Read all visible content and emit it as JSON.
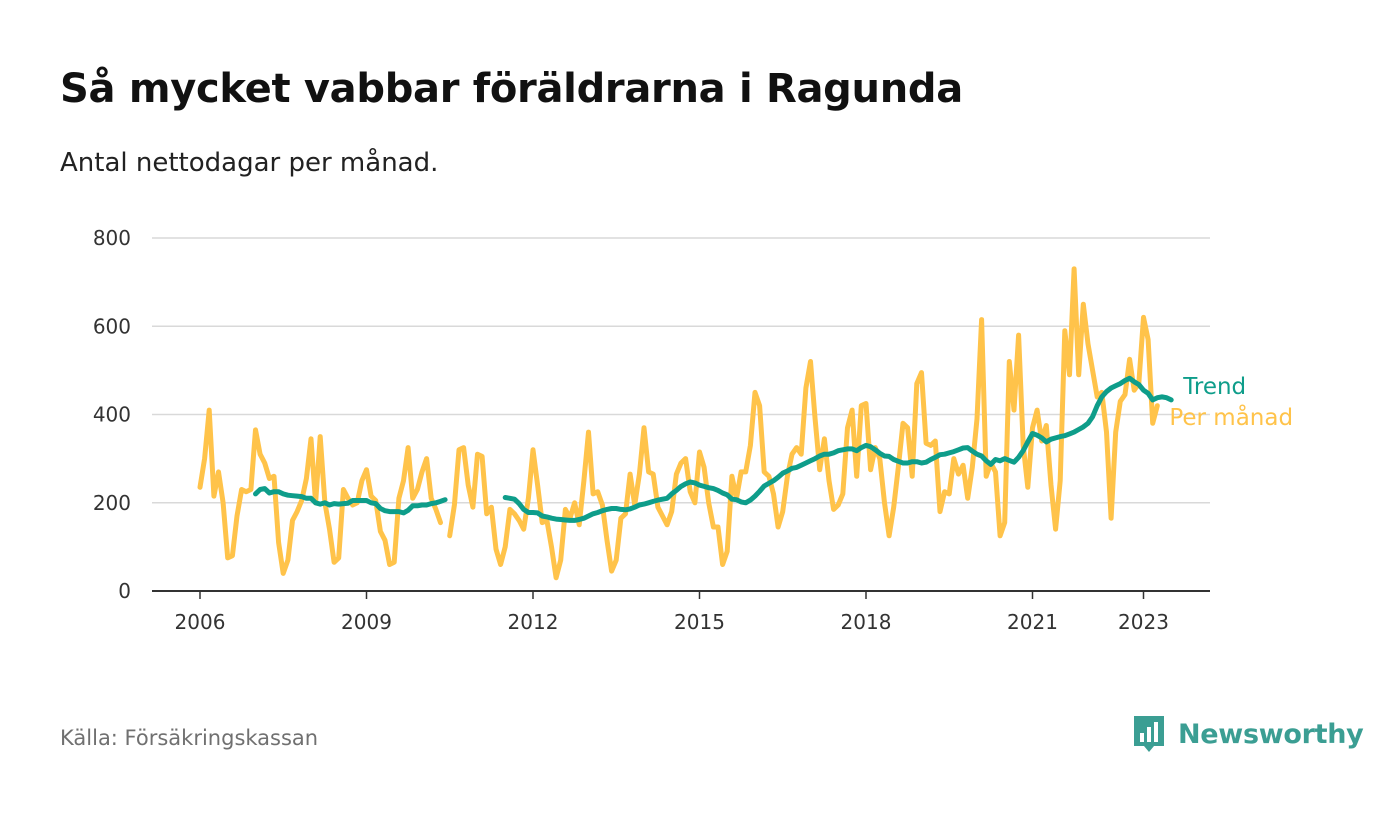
{
  "title": "Så mycket vabbar föräldrarna i Ragunda",
  "subtitle": "Antal nettodagar per månad.",
  "source": "Källa: Försäkringskassan",
  "brand": {
    "name": "Newsworthy",
    "icon": "newsworthy-logo-icon",
    "color": "#3b9e93"
  },
  "colors": {
    "monthly": "#ffc34a",
    "trend": "#0e9d8a",
    "grid": "#d9d9d9",
    "axis": "#333333"
  },
  "chart_data": {
    "type": "line",
    "title": "Så mycket vabbar föräldrarna i Ragunda",
    "ylabel": "",
    "xlabel": "",
    "ylim": [
      0,
      800
    ],
    "yticks": [
      0,
      200,
      400,
      600,
      800
    ],
    "ytick_labels": [
      "0",
      "200",
      "400",
      "600",
      "800"
    ],
    "xlim": [
      2005.75,
      2025.0
    ],
    "xticks": [
      2006,
      2009,
      2012,
      2015,
      2018,
      2021,
      2023
    ],
    "xtick_labels": [
      "2006",
      "2009",
      "2012",
      "2015",
      "2018",
      "2021",
      "2023"
    ],
    "legend_position": "inline at right end of lines",
    "series": [
      {
        "name": "Per månad",
        "label": "Per månad",
        "start": 2006.0,
        "step": 0.08333,
        "values": [
          235,
          300,
          410,
          215,
          270,
          200,
          75,
          80,
          170,
          230,
          225,
          230,
          365,
          310,
          290,
          255,
          260,
          110,
          40,
          70,
          160,
          180,
          205,
          255,
          345,
          200,
          350,
          200,
          140,
          65,
          75,
          230,
          210,
          195,
          200,
          250,
          275,
          215,
          205,
          135,
          115,
          60,
          65,
          210,
          250,
          325,
          210,
          230,
          270,
          300,
          210,
          185,
          155,
          null,
          125,
          195,
          320,
          325,
          240,
          190,
          310,
          305,
          175,
          190,
          95,
          60,
          100,
          185,
          175,
          160,
          140,
          210,
          320,
          240,
          155,
          160,
          100,
          30,
          70,
          185,
          165,
          200,
          150,
          250,
          360,
          220,
          225,
          195,
          115,
          45,
          70,
          165,
          175,
          265,
          195,
          265,
          370,
          270,
          265,
          190,
          170,
          150,
          180,
          265,
          290,
          300,
          225,
          200,
          315,
          280,
          200,
          145,
          145,
          60,
          90,
          260,
          210,
          270,
          270,
          330,
          450,
          420,
          270,
          260,
          220,
          145,
          180,
          260,
          310,
          325,
          310,
          460,
          520,
          390,
          275,
          345,
          250,
          185,
          195,
          220,
          370,
          410,
          260,
          420,
          425,
          275,
          325,
          300,
          200,
          125,
          190,
          280,
          380,
          370,
          260,
          470,
          495,
          335,
          330,
          340,
          180,
          225,
          220,
          300,
          265,
          285,
          210,
          280,
          390,
          615,
          260,
          290,
          270,
          125,
          155,
          520,
          410,
          580,
          330,
          235,
          370,
          410,
          340,
          375,
          240,
          140,
          250,
          590,
          490,
          730,
          490,
          650,
          560,
          500,
          440,
          450,
          360,
          165,
          360,
          430,
          445,
          525,
          455,
          470,
          620,
          570,
          380,
          420
        ],
        "color": "#ffc34a"
      },
      {
        "name": "Trend",
        "label": "Trend",
        "start": 2006.0,
        "step": 0.08333,
        "values": [
          null,
          null,
          null,
          null,
          null,
          null,
          null,
          null,
          null,
          null,
          null,
          null,
          220,
          230,
          232,
          222,
          225,
          225,
          220,
          217,
          216,
          215,
          214,
          210,
          210,
          200,
          197,
          200,
          195,
          198,
          197,
          198,
          199,
          205,
          205,
          205,
          205,
          200,
          198,
          187,
          182,
          180,
          180,
          180,
          177,
          183,
          193,
          193,
          195,
          195,
          198,
          200,
          203,
          207,
          null,
          null,
          null,
          null,
          null,
          null,
          null,
          null,
          null,
          null,
          null,
          null,
          212,
          210,
          208,
          198,
          185,
          178,
          178,
          177,
          170,
          168,
          165,
          163,
          162,
          161,
          160,
          160,
          162,
          165,
          170,
          175,
          178,
          182,
          185,
          187,
          187,
          185,
          184,
          186,
          190,
          195,
          197,
          200,
          203,
          206,
          208,
          210,
          220,
          228,
          237,
          243,
          247,
          245,
          240,
          237,
          234,
          232,
          228,
          222,
          218,
          208,
          207,
          202,
          200,
          206,
          215,
          226,
          238,
          244,
          250,
          258,
          267,
          272,
          278,
          280,
          285,
          290,
          295,
          300,
          306,
          310,
          310,
          313,
          318,
          320,
          322,
          322,
          318,
          325,
          330,
          327,
          320,
          312,
          306,
          305,
          298,
          294,
          290,
          290,
          293,
          293,
          290,
          292,
          298,
          303,
          309,
          310,
          313,
          316,
          320,
          324,
          325,
          317,
          310,
          306,
          295,
          287,
          298,
          295,
          300,
          296,
          292,
          303,
          318,
          338,
          357,
          353,
          347,
          338,
          344,
          347,
          350,
          352,
          356,
          360,
          366,
          372,
          380,
          395,
          420,
          440,
          452,
          460,
          465,
          470,
          477,
          482,
          474,
          468,
          455,
          448,
          433,
          438,
          440,
          438,
          433
        ],
        "color": "#0e9d8a"
      }
    ]
  }
}
